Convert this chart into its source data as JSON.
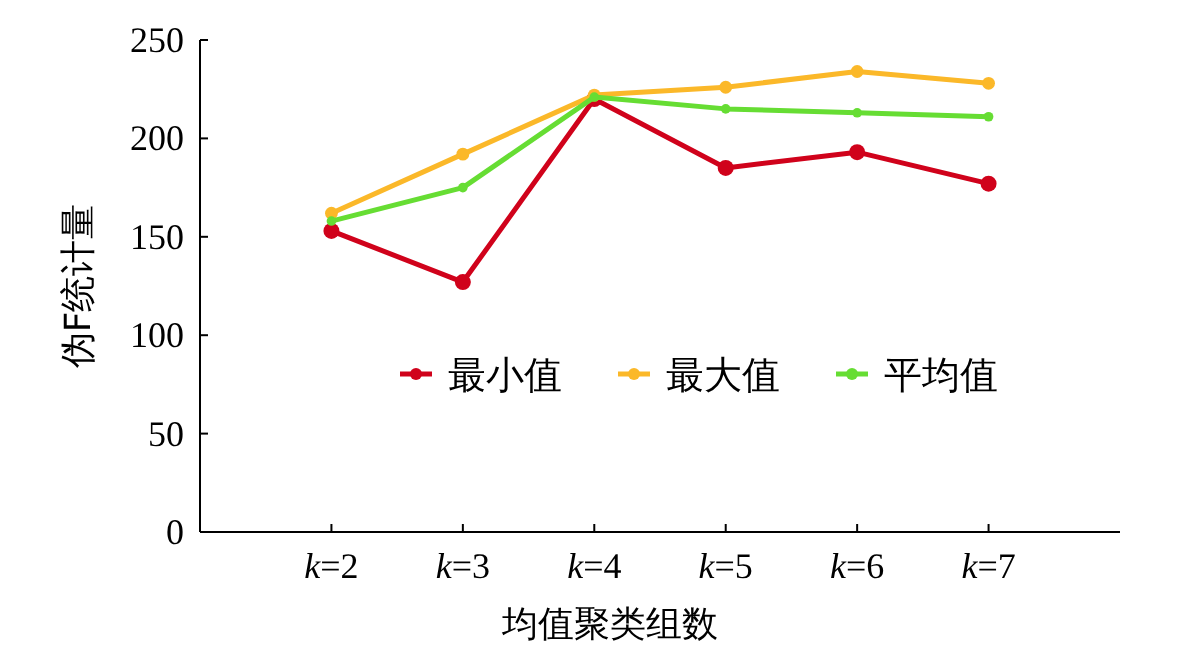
{
  "chart_data": {
    "type": "line",
    "xlabel": "均值聚类组数",
    "ylabel": "伪F统计量",
    "categories": [
      "*k*=2",
      "*k*=3",
      "*k*=4",
      "*k*=5",
      "*k*=6",
      "*k*=7"
    ],
    "series": [
      {
        "name": "最小值",
        "color": "#d0021b",
        "values": [
          153,
          127,
          220,
          185,
          193,
          177
        ]
      },
      {
        "name": "最大值",
        "color": "#fbb829",
        "values": [
          162,
          192,
          222,
          226,
          234,
          228
        ]
      },
      {
        "name": "平均值",
        "color": "#66dd33",
        "values": [
          158,
          175,
          221,
          215,
          213,
          211
        ]
      }
    ],
    "ylim": [
      0,
      250
    ],
    "yticks": [
      0,
      50,
      100,
      150,
      200,
      250
    ],
    "legend": "center",
    "marker": "circle",
    "line_style": "solid",
    "grid": false
  }
}
